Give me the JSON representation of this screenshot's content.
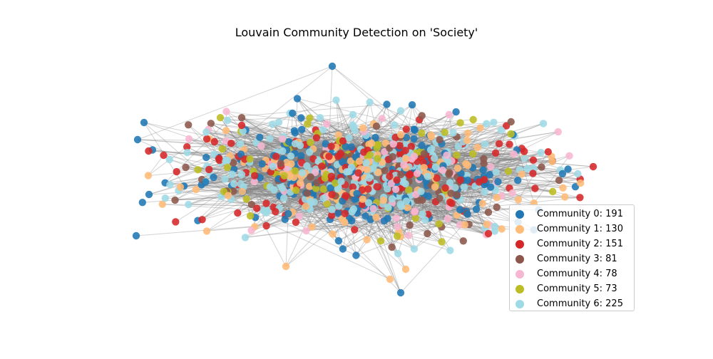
{
  "title": "Louvain Community Detection on 'Society'",
  "communities": [
    {
      "label": "Community 0: 191",
      "count": 191,
      "color": "#1f77b4"
    },
    {
      "label": "Community 1: 130",
      "count": 130,
      "color": "#ffbb78"
    },
    {
      "label": "Community 2: 151",
      "count": 151,
      "color": "#d62728"
    },
    {
      "label": "Community 3: 81",
      "count": 81,
      "color": "#8c564b"
    },
    {
      "label": "Community 4: 78",
      "count": 78,
      "color": "#f7b6d2"
    },
    {
      "label": "Community 5: 73",
      "count": 73,
      "color": "#bcbd22"
    },
    {
      "label": "Community 6: 225",
      "count": 225,
      "color": "#9edae5"
    }
  ],
  "edge_color": "#808080"
}
